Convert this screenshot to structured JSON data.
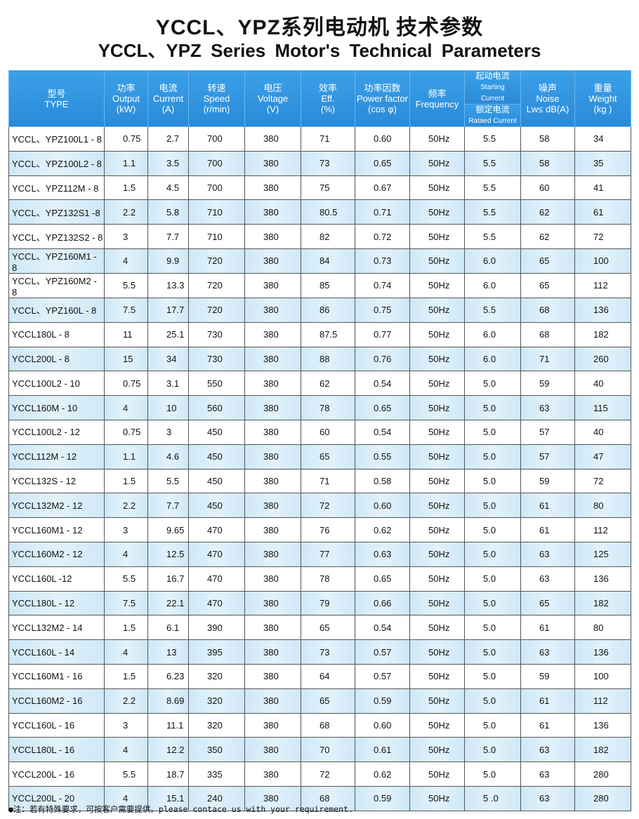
{
  "title_cn": "YCCL、YPZ系列电动机 技术参数",
  "title_en": "YCCL、YPZ  Series Motor's Technical  Parameters",
  "headers": {
    "type": [
      "型号",
      "TYPE"
    ],
    "output": [
      "功率",
      "Output",
      "(kW)"
    ],
    "current": [
      "电流",
      "Current",
      "(A)"
    ],
    "speed": [
      "转速",
      "Speed",
      "(r/min)"
    ],
    "voltage": [
      "电压",
      "Voltage",
      "(V)"
    ],
    "eff": [
      "效率",
      "Eff.",
      "(%)"
    ],
    "pf": [
      "功率因数",
      "Power factor",
      "(cos φ)"
    ],
    "freq": [
      "频率",
      "Frequency"
    ],
    "start_top": [
      "起动电流",
      "Starting",
      "Current"
    ],
    "start_bottom": [
      "额定电流",
      "Rataed Current"
    ],
    "noise": [
      "噪声",
      "Noise",
      "Lw≤ dB(A)"
    ],
    "weight": [
      "重量",
      "Weight",
      "(kg )"
    ]
  },
  "rows": [
    [
      "YCCL、YPZ100L1 - 8",
      "0.75",
      "2.7",
      "700",
      "380",
      "71",
      "0.60",
      "50Hz",
      "5.5",
      "58",
      "34"
    ],
    [
      "YCCL、YPZ100L2 - 8",
      "1.1",
      "3.5",
      "700",
      "380",
      "73",
      "0.65",
      "50Hz",
      "5.5",
      "58",
      "35"
    ],
    [
      "YCCL、YPZ112M - 8",
      "1.5",
      "4.5",
      "700",
      "380",
      "75",
      "0.67",
      "50Hz",
      "5.5",
      "60",
      "41"
    ],
    [
      "YCCL、YPZ132S1 -8",
      "2.2",
      "5.8",
      "710",
      "380",
      "80.5",
      "0.71",
      "50Hz",
      "5.5",
      "62",
      "61"
    ],
    [
      "YCCL、YPZ132S2 - 8",
      "3",
      "7.7",
      "710",
      "380",
      "82",
      "0.72",
      "50Hz",
      "5.5",
      "62",
      "72"
    ],
    [
      "YCCL、YPZ160M1 - 8",
      "4",
      "9.9",
      "720",
      "380",
      "84",
      "0.73",
      "50Hz",
      "6.0",
      "65",
      "100"
    ],
    [
      "YCCL、YPZ160M2 - 8",
      "5.5",
      "13.3",
      "720",
      "380",
      "85",
      "0.74",
      "50Hz",
      "6.0",
      "65",
      "112"
    ],
    [
      "YCCL、YPZ160L - 8",
      "7.5",
      "17.7",
      "720",
      "380",
      "86",
      "0.75",
      "50Hz",
      "5.5",
      "68",
      "136"
    ],
    [
      "YCCL180L - 8",
      "11",
      "25.1",
      "730",
      "380",
      "87.5",
      "0.77",
      "50Hz",
      "6.0",
      "68",
      "182"
    ],
    [
      "YCCL200L - 8",
      "15",
      "34",
      "730",
      "380",
      "88",
      "0.76",
      "50Hz",
      "6.0",
      "71",
      "260"
    ],
    [
      "YCCL100L2 - 10",
      "0.75",
      "3.1",
      "550",
      "380",
      "62",
      "0.54",
      "50Hz",
      "5.0",
      "59",
      "40"
    ],
    [
      "YCCL160M - 10",
      "4",
      "10",
      "560",
      "380",
      "78",
      "0.65",
      "50Hz",
      "5.0",
      "63",
      "115"
    ],
    [
      "YCCL100L2 - 12",
      "0.75",
      "3",
      "450",
      "380",
      "60",
      "0.54",
      "50Hz",
      "5.0",
      "57",
      "40"
    ],
    [
      "YCCL112M - 12",
      "1.1",
      "4.6",
      "450",
      "380",
      "65",
      "0.55",
      "50Hz",
      "5.0",
      "57",
      "47"
    ],
    [
      "YCCL132S - 12",
      "1.5",
      "5.5",
      "450",
      "380",
      "71",
      "0.58",
      "50Hz",
      "5.0",
      "59",
      "72"
    ],
    [
      "YCCL132M2 - 12",
      "2.2",
      "7.7",
      "450",
      "380",
      "72",
      "0.60",
      "50Hz",
      "5.0",
      "61",
      "80"
    ],
    [
      "YCCL160M1 - 12",
      "3",
      "9.65",
      "470",
      "380",
      "76",
      "0.62",
      "50Hz",
      "5.0",
      "61",
      "112"
    ],
    [
      "YCCL160M2 - 12",
      "4",
      "12.5",
      "470",
      "380",
      "77",
      "0.63",
      "50Hz",
      "5.0",
      "63",
      "125"
    ],
    [
      "YCCL160L -12",
      "5.5",
      "16.7",
      "470",
      "380",
      "78",
      "0.65",
      "50Hz",
      "5.0",
      "63",
      "136"
    ],
    [
      "YCCL180L - 12",
      "7.5",
      "22.1",
      "470",
      "380",
      "79",
      "0.66",
      "50Hz",
      "5.0",
      "65",
      "182"
    ],
    [
      "YCCL132M2 - 14",
      "1.5",
      "6.1",
      "390",
      "380",
      "65",
      "0.54",
      "50Hz",
      "5.0",
      "61",
      "80"
    ],
    [
      "YCCL160L - 14",
      "4",
      "13",
      "395",
      "380",
      "73",
      "0.57",
      "50Hz",
      "5.0",
      "63",
      "136"
    ],
    [
      "YCCL160M1 - 16",
      "1.5",
      "6.23",
      "320",
      "380",
      "64",
      "0.57",
      "50Hz",
      "5.0",
      "59",
      "100"
    ],
    [
      "YCCL160M2 - 16",
      "2.2",
      "8.69",
      "320",
      "380",
      "65",
      "0.59",
      "50Hz",
      "5.0",
      "61",
      "112"
    ],
    [
      "YCCL160L - 16",
      "3",
      "11.1",
      "320",
      "380",
      "68",
      "0.60",
      "50Hz",
      "5.0",
      "61",
      "136"
    ],
    [
      "YCCL180L - 16",
      "4",
      "12.2",
      "350",
      "380",
      "70",
      "0.61",
      "50Hz",
      "5.0",
      "63",
      "182"
    ],
    [
      "YCCL200L - 16",
      "5.5",
      "18.7",
      "335",
      "380",
      "72",
      "0.62",
      "50Hz",
      "5.0",
      "63",
      "280"
    ],
    [
      "YCCL200L - 20",
      "4",
      "15.1",
      "240",
      "380",
      "68",
      "0.59",
      "50Hz",
      "5 .0",
      "63",
      "280"
    ]
  ],
  "note": "●注：若有特殊要求，可按客户需要提供。please contace us with your requirement."
}
